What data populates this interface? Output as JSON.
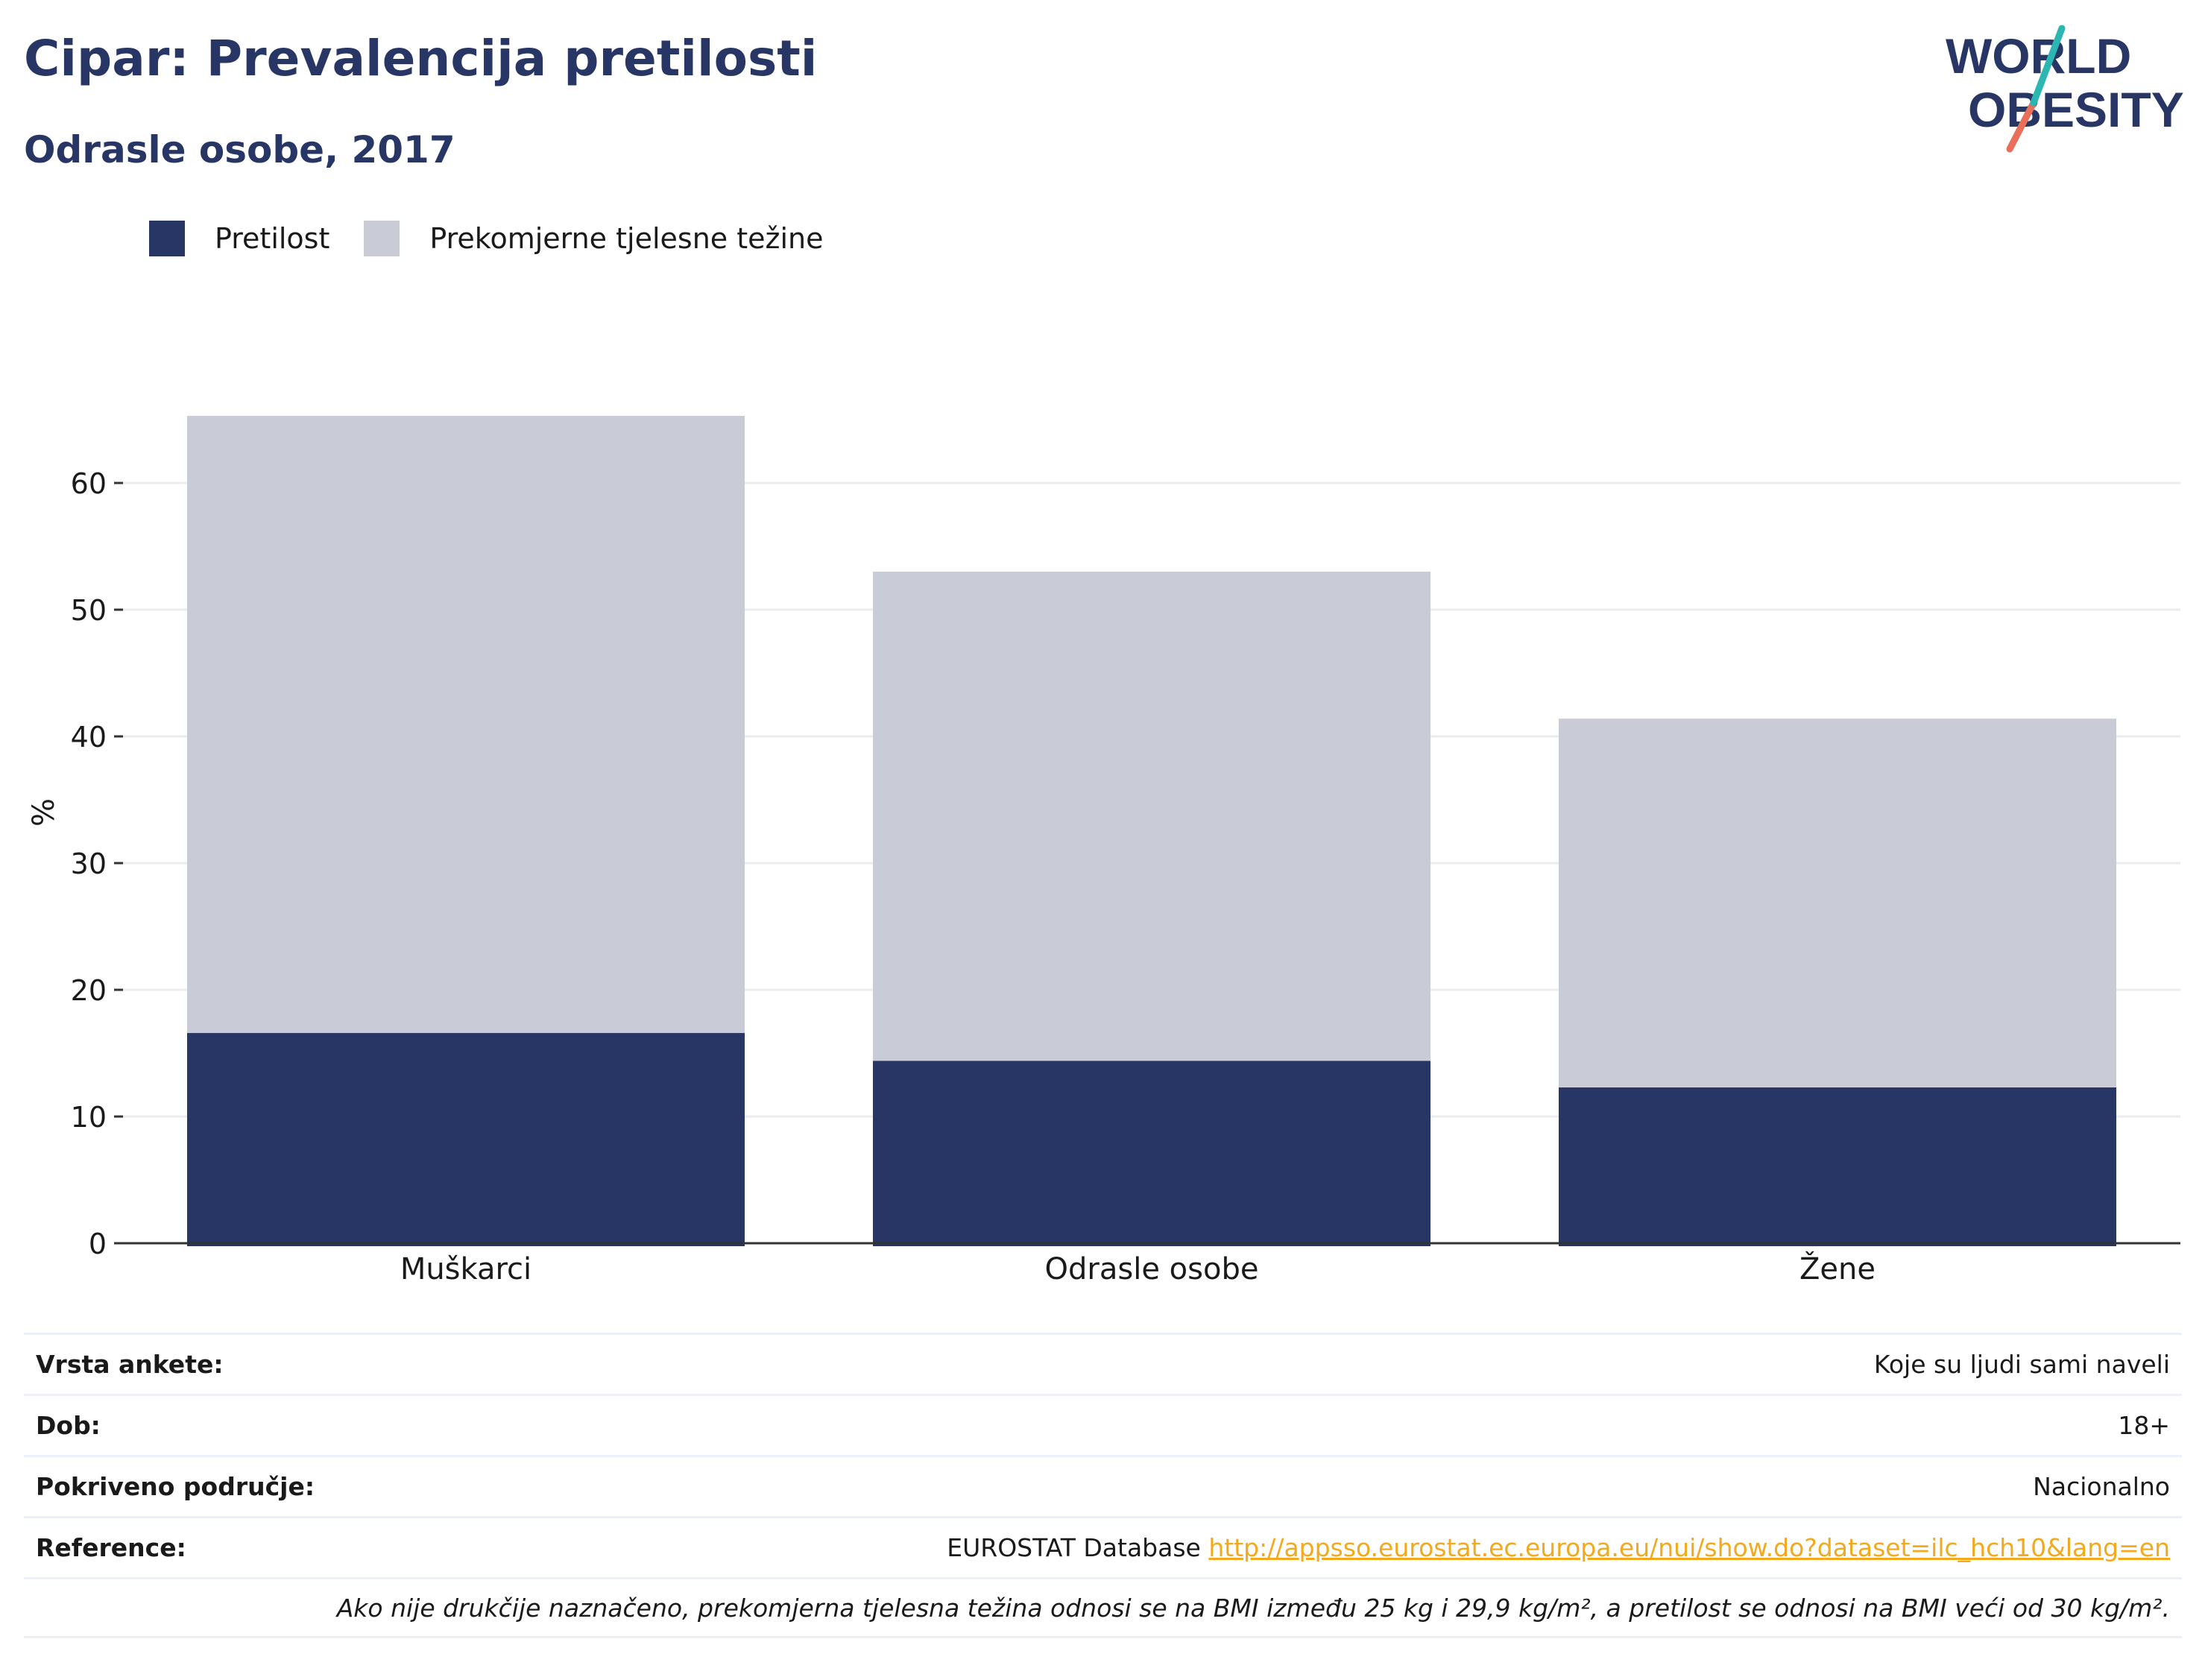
{
  "header": {
    "title": "Cipar: Prevalencija pretilosti",
    "subtitle": "Odrasle osobe, 2017"
  },
  "logo": {
    "line1": "WORLD",
    "line2": "OBESITY",
    "accent_colors": [
      "#2bb6b1",
      "#e8705a"
    ]
  },
  "colors": {
    "obesity": "#283665",
    "overweight": "#c9cbd6",
    "axis": "#333333",
    "grid": "#ebebf0"
  },
  "chart_data": {
    "type": "bar",
    "stacked": true,
    "categories": [
      "Muškarci",
      "Odrasle osobe",
      "Žene"
    ],
    "series": [
      {
        "name": "Pretilost",
        "values": [
          16.6,
          14.4,
          12.3
        ]
      },
      {
        "name": "Prekomjerne tjelesne težine",
        "values": [
          48.7,
          38.6,
          29.1
        ]
      }
    ],
    "ylabel": "%",
    "ylim": [
      0,
      70
    ],
    "yticks": [
      0,
      10,
      20,
      30,
      40,
      50,
      60
    ],
    "grid": true,
    "legend": "top-left"
  },
  "info": {
    "rows": [
      {
        "key": "Vrsta ankete:",
        "value": "Koje su ljudi sami naveli"
      },
      {
        "key": "Dob:",
        "value": "18+"
      },
      {
        "key": "Pokriveno područje:",
        "value": "Nacionalno"
      }
    ],
    "reference_key": "Reference:",
    "reference_text": "EUROSTAT Database",
    "reference_link": "http://appsso.eurostat.ec.europa.eu/nui/show.do?dataset=ilc_hch10&lang=en",
    "note": "Ako nije drukčije naznačeno, prekomjerna tjelesna težina odnosi se na BMI između 25 kg i 29,9 kg/m², a pretilost se odnosi na BMI veći od 30 kg/m²."
  }
}
